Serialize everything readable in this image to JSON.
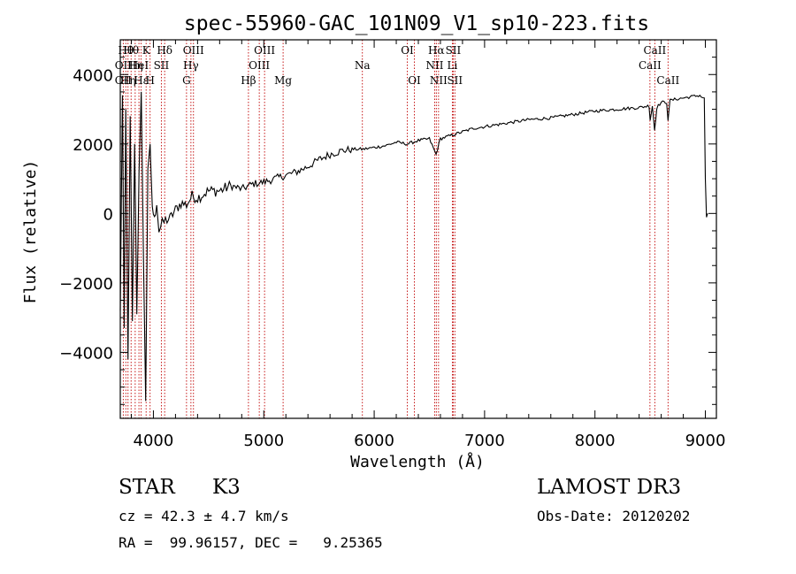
{
  "chart_data": {
    "type": "line",
    "title": "spec-55960-GAC_101N09_V1_sp10-223.fits",
    "xlabel": "Wavelength (Å)",
    "ylabel": "Flux (relative)",
    "xlim": [
      3700,
      9100
    ],
    "ylim": [
      -5900,
      5000
    ],
    "xticks": [
      4000,
      5000,
      6000,
      7000,
      8000,
      9000
    ],
    "yticks": [
      -4000,
      -2000,
      0,
      2000,
      4000
    ],
    "xtick_labels": [
      "4000",
      "5000",
      "6000",
      "7000",
      "8000",
      "9000"
    ],
    "ytick_labels": [
      "−4000",
      "−2000",
      "0",
      "2000",
      "4000"
    ],
    "series": [
      {
        "name": "flux",
        "x": [
          3700,
          3720,
          3735,
          3750,
          3770,
          3790,
          3810,
          3830,
          3850,
          3870,
          3890,
          3910,
          3930,
          3950,
          3970,
          3990,
          4010,
          4030,
          4050,
          4080,
          4110,
          4150,
          4200,
          4250,
          4300,
          4350,
          4400,
          4500,
          4600,
          4700,
          4800,
          4900,
          5000,
          5100,
          5200,
          5300,
          5400,
          5500,
          5600,
          5700,
          5800,
          5900,
          6000,
          6100,
          6200,
          6300,
          6400,
          6500,
          6560,
          6600,
          6700,
          6800,
          6900,
          7000,
          7200,
          7400,
          7600,
          7800,
          8000,
          8200,
          8400,
          8490,
          8500,
          8520,
          8540,
          8560,
          8600,
          8650,
          8662,
          8680,
          8750,
          8850,
          8950,
          8990,
          9000,
          9010,
          9020
        ],
        "y": [
          -2800,
          3400,
          -3300,
          3000,
          -4200,
          2800,
          -3100,
          2000,
          -2900,
          1200,
          3500,
          -1300,
          -5400,
          1300,
          2000,
          200,
          -200,
          350,
          -500,
          -300,
          -200,
          -150,
          100,
          300,
          250,
          500,
          450,
          650,
          650,
          800,
          700,
          850,
          900,
          1000,
          1100,
          1200,
          1350,
          1550,
          1700,
          1800,
          1850,
          1850,
          1900,
          1950,
          2050,
          2000,
          2100,
          2150,
          1700,
          2150,
          2250,
          2350,
          2450,
          2500,
          2600,
          2700,
          2750,
          2850,
          2950,
          3000,
          3050,
          3100,
          2700,
          3100,
          2400,
          3050,
          3200,
          3200,
          2700,
          3250,
          3300,
          3350,
          3400,
          3300,
          1000,
          -100,
          0
        ]
      }
    ],
    "line_markers": [
      {
        "wl": 3750,
        "row": 1,
        "label": "Hθ"
      },
      {
        "wl": 3727,
        "row": 2,
        "label": "OII"
      },
      {
        "wl": 3727,
        "row": 3,
        "label": "OII"
      },
      {
        "wl": 3770,
        "row": 3,
        "label": "Hη"
      },
      {
        "wl": 3798,
        "row": 1,
        "label": "Hθ"
      },
      {
        "wl": 3835,
        "row": 2,
        "label": "Hη"
      },
      {
        "wl": 3869,
        "row": 2,
        "label": "HeI"
      },
      {
        "wl": 3889,
        "row": 3,
        "label": "Hε"
      },
      {
        "wl": 3934,
        "row": 1,
        "label": "K"
      },
      {
        "wl": 3970,
        "row": 3,
        "label": "H"
      },
      {
        "wl": 4072,
        "row": 2,
        "label": "SII"
      },
      {
        "wl": 4102,
        "row": 1,
        "label": "Hδ"
      },
      {
        "wl": 4300,
        "row": 3,
        "label": "G"
      },
      {
        "wl": 4340,
        "row": 2,
        "label": "Hγ"
      },
      {
        "wl": 4363,
        "row": 1,
        "label": "OIII"
      },
      {
        "wl": 4861,
        "row": 3,
        "label": "Hβ"
      },
      {
        "wl": 4959,
        "row": 2,
        "label": "OIII"
      },
      {
        "wl": 5007,
        "row": 1,
        "label": "OIII"
      },
      {
        "wl": 5175,
        "row": 3,
        "label": "Mg"
      },
      {
        "wl": 5893,
        "row": 2,
        "label": "Na"
      },
      {
        "wl": 6300,
        "row": 1,
        "label": "OI"
      },
      {
        "wl": 6364,
        "row": 3,
        "label": "OI"
      },
      {
        "wl": 6548,
        "row": 2,
        "label": "NII"
      },
      {
        "wl": 6563,
        "row": 1,
        "label": "Hα"
      },
      {
        "wl": 6583,
        "row": 3,
        "label": "NII"
      },
      {
        "wl": 6708,
        "row": 2,
        "label": "Li"
      },
      {
        "wl": 6716,
        "row": 1,
        "label": "SII"
      },
      {
        "wl": 6731,
        "row": 3,
        "label": "SII"
      },
      {
        "wl": 8498,
        "row": 2,
        "label": "CaII"
      },
      {
        "wl": 8542,
        "row": 1,
        "label": "CaII"
      },
      {
        "wl": 8662,
        "row": 3,
        "label": "CaII"
      }
    ]
  },
  "info": {
    "class": "STAR",
    "subclass": "K3",
    "survey": "LAMOST DR3",
    "cz": "cz = 42.3 ± 4.7 km/s",
    "obs_date": "Obs-Date: 20120202",
    "coords": "RA =  99.96157, DEC =   9.25365"
  },
  "colors": {
    "line_marker": "#c00000",
    "spectrum": "#000000"
  }
}
